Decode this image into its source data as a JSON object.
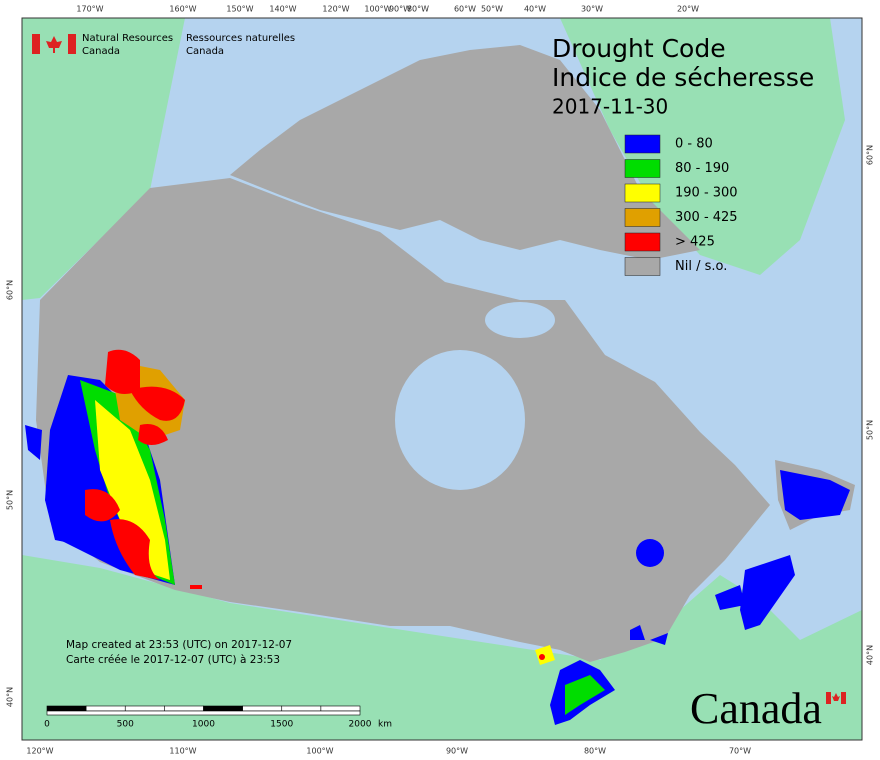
{
  "header": {
    "agency_en": [
      "Natural Resources",
      "Canada"
    ],
    "agency_fr": [
      "Ressources naturelles",
      "Canada"
    ],
    "title": [
      "Drought Code",
      "Indice de sécheresse"
    ],
    "date": "2017-11-30"
  },
  "legend": [
    {
      "label": "0 - 80",
      "color": "#0000ff"
    },
    {
      "label": "80 - 190",
      "color": "#00dd00"
    },
    {
      "label": "190 - 300",
      "color": "#ffff00"
    },
    {
      "label": "300 - 425",
      "color": "#e0a000"
    },
    {
      "label": "> 425",
      "color": "#ff0000"
    },
    {
      "label": "Nil / s.o.",
      "color": "#a8a8a8"
    }
  ],
  "graticule": {
    "top": [
      "170°W",
      "160°W",
      "150°W",
      "140°W",
      "120°W",
      "100°W",
      "90°W",
      "80°W",
      "60°W",
      "50°W",
      "40°W",
      "30°W",
      "20°W"
    ],
    "bottom": [
      "120°W",
      "110°W",
      "100°W",
      "90°W",
      "80°W",
      "70°W"
    ],
    "left": [
      "60°N",
      "50°N",
      "40°N"
    ],
    "right": [
      "60°N",
      "50°N",
      "40°N"
    ]
  },
  "notes": [
    "Map created at 23:53 (UTC) on 2017-12-07",
    "Carte créée le 2017-12-07 (UTC) à 23:53"
  ],
  "scale_bar": {
    "labels": [
      "0",
      "500",
      "1000",
      "1500",
      "2000"
    ],
    "unit": "km"
  },
  "wordmark": "Canada"
}
